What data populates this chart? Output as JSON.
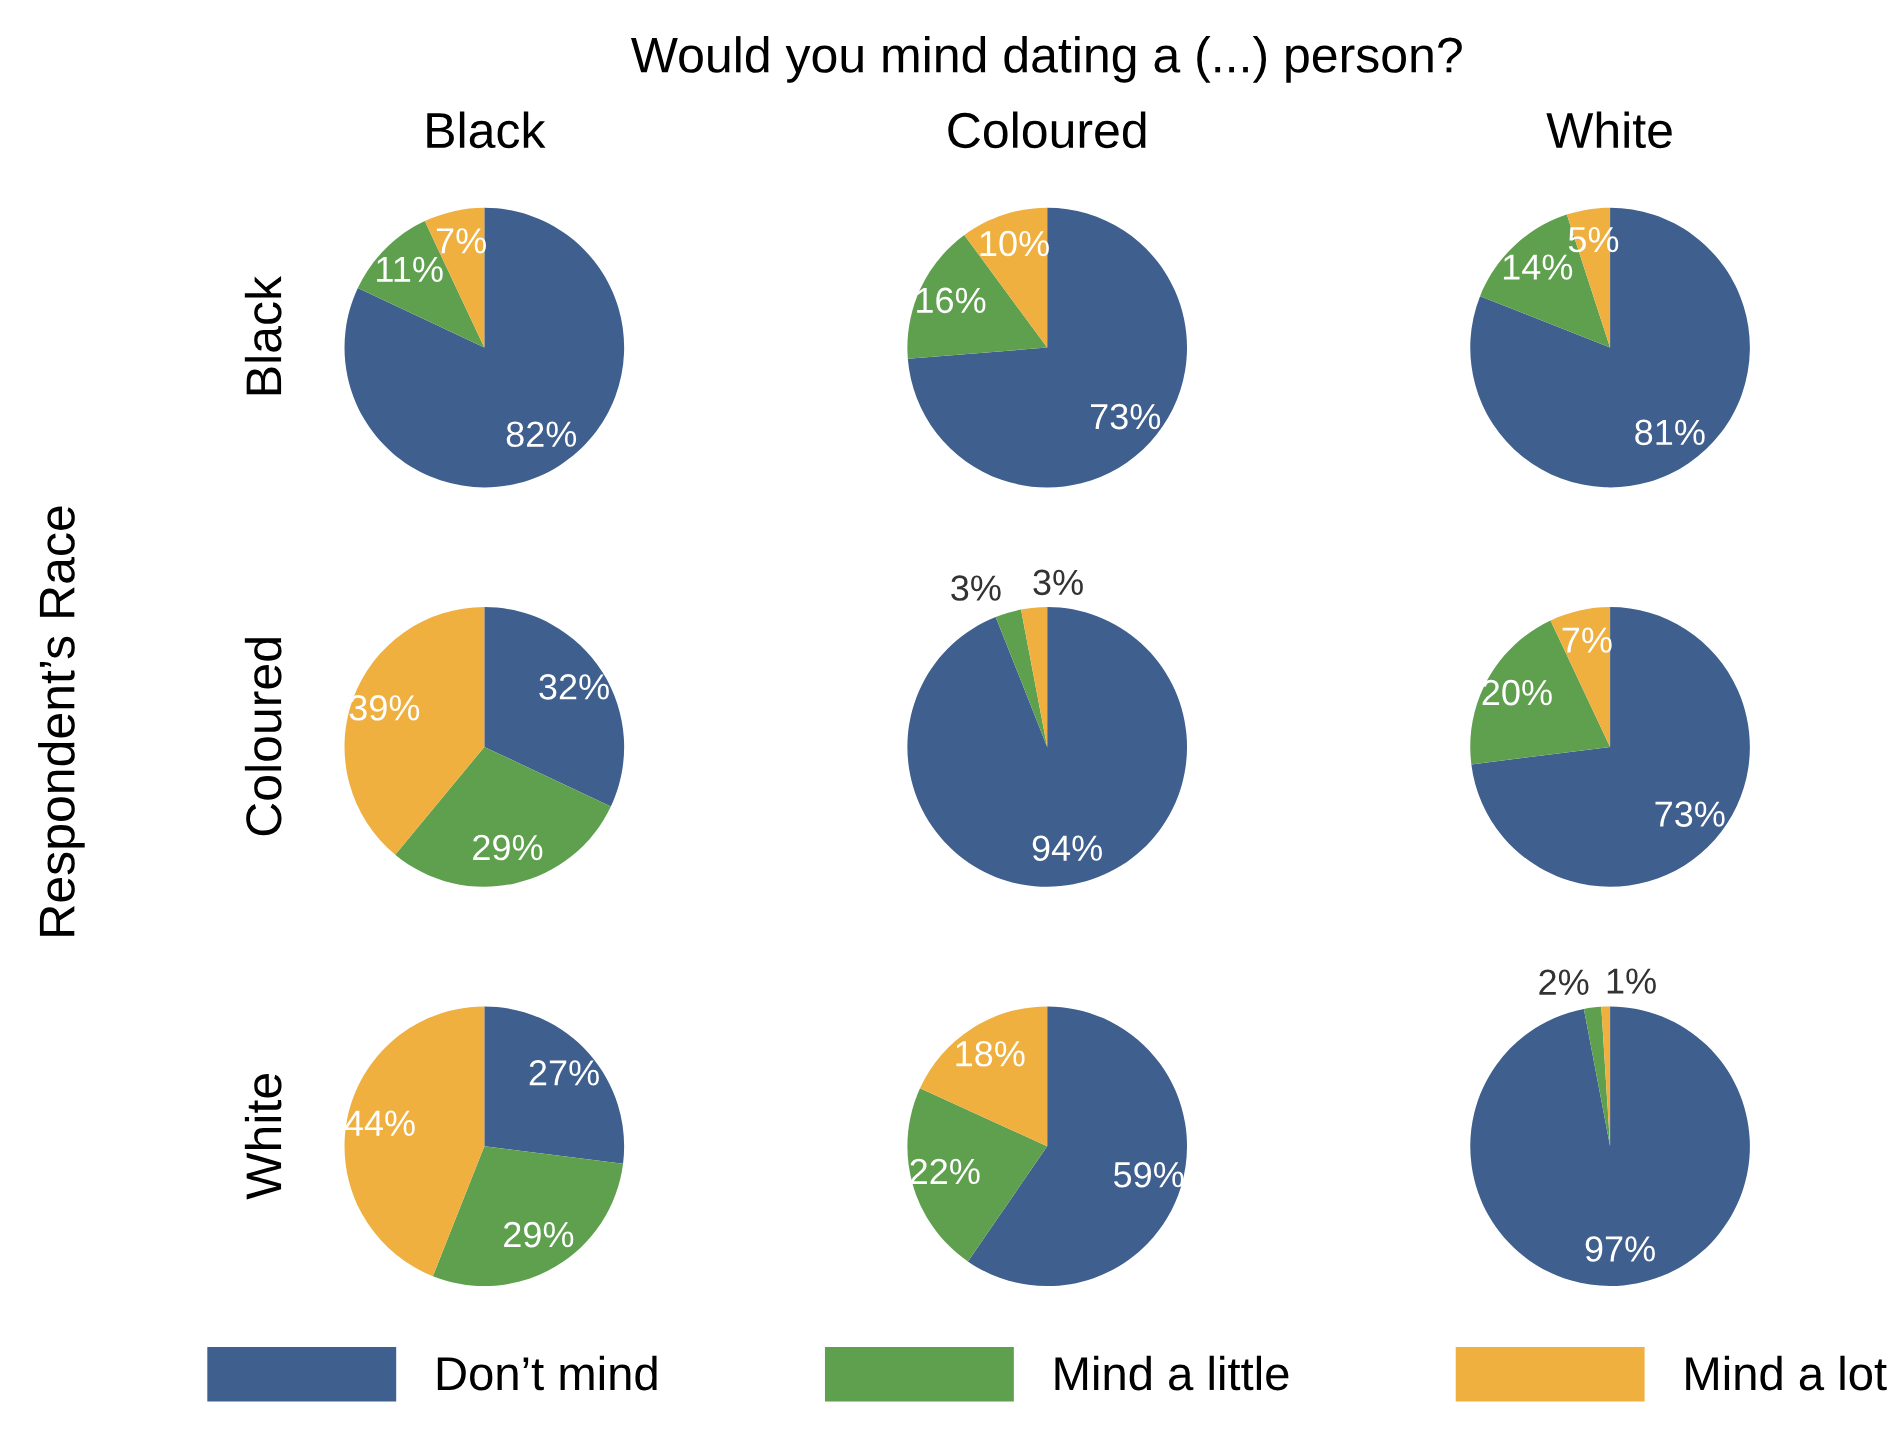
{
  "chart_data": [
    {
      "type": "pie",
      "title": "Black",
      "ylabel": "Black",
      "annotations": [
        "Would you mind dating a (...) person?",
        "Respondent’s Race"
      ],
      "legend": "bottom",
      "categories": [
        "Don’t mind",
        "Mind a little",
        "Mind a lot"
      ],
      "values": [
        82,
        11,
        7
      ],
      "value_labels": [
        "82%",
        "11%",
        "7%"
      ],
      "colors": [
        "#3f5f8e",
        "#5fa04e",
        "#efb040"
      ]
    },
    {
      "type": "pie",
      "title": "Coloured",
      "values": [
        73,
        16,
        10
      ],
      "value_labels": [
        "73%",
        "16%",
        "10%"
      ],
      "colors": [
        "#3f5f8e",
        "#5fa04e",
        "#efb040"
      ]
    },
    {
      "type": "pie",
      "title": "White",
      "values": [
        81,
        14,
        5
      ],
      "value_labels": [
        "81%",
        "14%",
        "5%"
      ],
      "colors": [
        "#3f5f8e",
        "#5fa04e",
        "#efb040"
      ]
    },
    {
      "type": "pie",
      "ylabel": "Coloured",
      "values": [
        32,
        29,
        39
      ],
      "value_labels": [
        "32%",
        "29%",
        "39%"
      ],
      "colors": [
        "#3f5f8e",
        "#5fa04e",
        "#efb040"
      ]
    },
    {
      "type": "pie",
      "values": [
        94,
        3,
        3
      ],
      "value_labels": [
        "94%",
        "3%",
        "3%"
      ],
      "colors": [
        "#3f5f8e",
        "#5fa04e",
        "#efb040"
      ]
    },
    {
      "type": "pie",
      "values": [
        73,
        20,
        7
      ],
      "value_labels": [
        "73%",
        "20%",
        "7%"
      ],
      "colors": [
        "#3f5f8e",
        "#5fa04e",
        "#efb040"
      ]
    },
    {
      "type": "pie",
      "ylabel": "White",
      "values": [
        27,
        29,
        44
      ],
      "value_labels": [
        "27%",
        "29%",
        "44%"
      ],
      "colors": [
        "#3f5f8e",
        "#5fa04e",
        "#efb040"
      ]
    },
    {
      "type": "pie",
      "values": [
        59,
        22,
        18
      ],
      "value_labels": [
        "59%",
        "22%",
        "18%"
      ],
      "colors": [
        "#3f5f8e",
        "#5fa04e",
        "#efb040"
      ]
    },
    {
      "type": "pie",
      "values": [
        97,
        2,
        1
      ],
      "value_labels": [
        "97%",
        "2%",
        "1%"
      ],
      "colors": [
        "#3f5f8e",
        "#5fa04e",
        "#efb040"
      ]
    }
  ]
}
